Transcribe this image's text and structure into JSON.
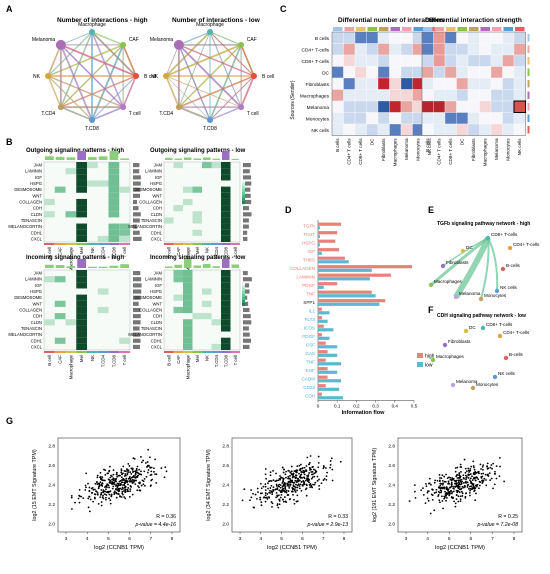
{
  "panels": {
    "A": {
      "label": "A",
      "title_high": "Number of interactions - high",
      "title_low": "Number of interactions - low",
      "nodes": [
        "Macrophage",
        "CAF",
        "B cell",
        "T cell",
        "T.CD8",
        "T.CD4",
        "NK",
        "Melanoma"
      ],
      "node_colors": [
        "#4db6ac",
        "#8bc34a",
        "#e74c3c",
        "#b07cc6",
        "#5b9bd5",
        "#c0a060",
        "#d4a73c",
        "#a86fb6"
      ]
    },
    "B": {
      "label": "B",
      "titles": [
        "Outgoing signaling patterns - high",
        "Outgoing signaling patterns - low",
        "Incoming signaling patterns - high",
        "Incoming signaling patterns - low"
      ],
      "rows": [
        "JAM",
        "LAMININ",
        "IGF",
        "HSPG",
        "DESMOSOME",
        "WNT",
        "COLLAGEN",
        "CDH",
        "CLDN",
        "TENASCIN",
        "MELANOCORTIN",
        "CDH1",
        "CXCL"
      ],
      "cols": [
        "B cell",
        "CAF",
        "Macrophage",
        "Mel",
        "NK",
        "T.CD4",
        "T.CD8",
        "T cell"
      ]
    },
    "C": {
      "label": "C",
      "title1": "Differential number of interactions",
      "title2": "Differential interaction strength",
      "ylabel": "Sources (Sender)",
      "rows": [
        "B cells",
        "CD4+ T-cells",
        "CD8+ T-cells",
        "DC",
        "Fibroblasts",
        "Macrophages",
        "Melanoma",
        "Monocytes",
        "NK cells"
      ],
      "cols": [
        "B cells",
        "CD4+ T cells",
        "CD8+ T cells",
        "DC",
        "Fibroblasts",
        "Macrophages",
        "Melanoma",
        "Monocytes",
        "NK cells"
      ]
    },
    "D": {
      "label": "D"
    },
    "E": {
      "label": "E",
      "title": "TGFb signaling pathway network - high",
      "nodes": [
        "CD8+ T-cells",
        "CD4+ T-cells",
        "DC",
        "Fibroblasts",
        "B-cells",
        "Macrophages",
        "NK cells",
        "Melanoma",
        "Monocytes"
      ]
    },
    "F": {
      "label": "F",
      "title": "CDH signaling pathway network - low",
      "nodes": [
        "CD8+ T-cells",
        "DC",
        "CD4+ T-cells",
        "Fibroblasts",
        "Macrophages",
        "B-cells",
        "NK cells",
        "Melanoma",
        "Monocytes"
      ]
    },
    "G": {
      "label": "G",
      "xlabel": "log2 (CCNB1 TPM)",
      "plots": [
        {
          "ylabel": "log2 (15 EMT Signature TPM)",
          "r": "R = 0.36",
          "p": "p-value = 4.4e-16"
        },
        {
          "ylabel": "log2 (34 EMT Signature TPM)",
          "r": "R = 0.33",
          "p": "p-value = 2.9e-13"
        },
        {
          "ylabel": "log2 (191 EMT Signature TPM)",
          "r": "R = 0.25",
          "p": "p-value = 7.2e-08"
        }
      ]
    }
  },
  "chart_data": {
    "type": "bar",
    "title": "",
    "xlabel": "Information flow",
    "ylabel": "",
    "xlim": [
      0,
      0.5
    ],
    "xticks": [
      "0",
      "0.1",
      "0.2",
      "0.3",
      "0.4",
      "0.5"
    ],
    "categories": [
      "TGFb",
      "TIGIT",
      "HSPG",
      "IGF",
      "THBS",
      "COLLAGEN",
      "LAMININ",
      "PDGF",
      "TNF",
      "SPP1",
      "IL1",
      "FLT3",
      "ICOS",
      "PDGF",
      "CSF",
      "GAS",
      "TNF",
      "EGF",
      "CADM",
      "CD22",
      "CDH"
    ],
    "category_colors": [
      "#e8817a",
      "#e8817a",
      "#e8817a",
      "#e8817a",
      "#e8817a",
      "#e8817a",
      "#e8817a",
      "#e8817a",
      "#e8817a",
      "#222222",
      "#4ab3c9",
      "#4ab3c9",
      "#4ab3c9",
      "#4ab3c9",
      "#4ab3c9",
      "#4ab3c9",
      "#4ab3c9",
      "#4ab3c9",
      "#4ab3c9",
      "#4ab3c9",
      "#4ab3c9"
    ],
    "series": [
      {
        "name": "high",
        "color": "#e8817a",
        "values": [
          0.12,
          0.1,
          0.09,
          0.11,
          0.14,
          0.49,
          0.38,
          0.1,
          0.28,
          0.35,
          0.02,
          0.02,
          0.03,
          0.02,
          0.04,
          0.05,
          0.04,
          0.05,
          0.05,
          0.04,
          0.02
        ]
      },
      {
        "name": "low",
        "color": "#5bb8d0",
        "values": [
          0.01,
          0.01,
          0.01,
          0.02,
          0.16,
          0.28,
          0.27,
          0.03,
          0.3,
          0.32,
          0.06,
          0.05,
          0.08,
          0.06,
          0.1,
          0.1,
          0.12,
          0.1,
          0.12,
          0.11,
          0.13
        ]
      }
    ],
    "legend": [
      "high",
      "low"
    ],
    "legend_position": "right"
  }
}
